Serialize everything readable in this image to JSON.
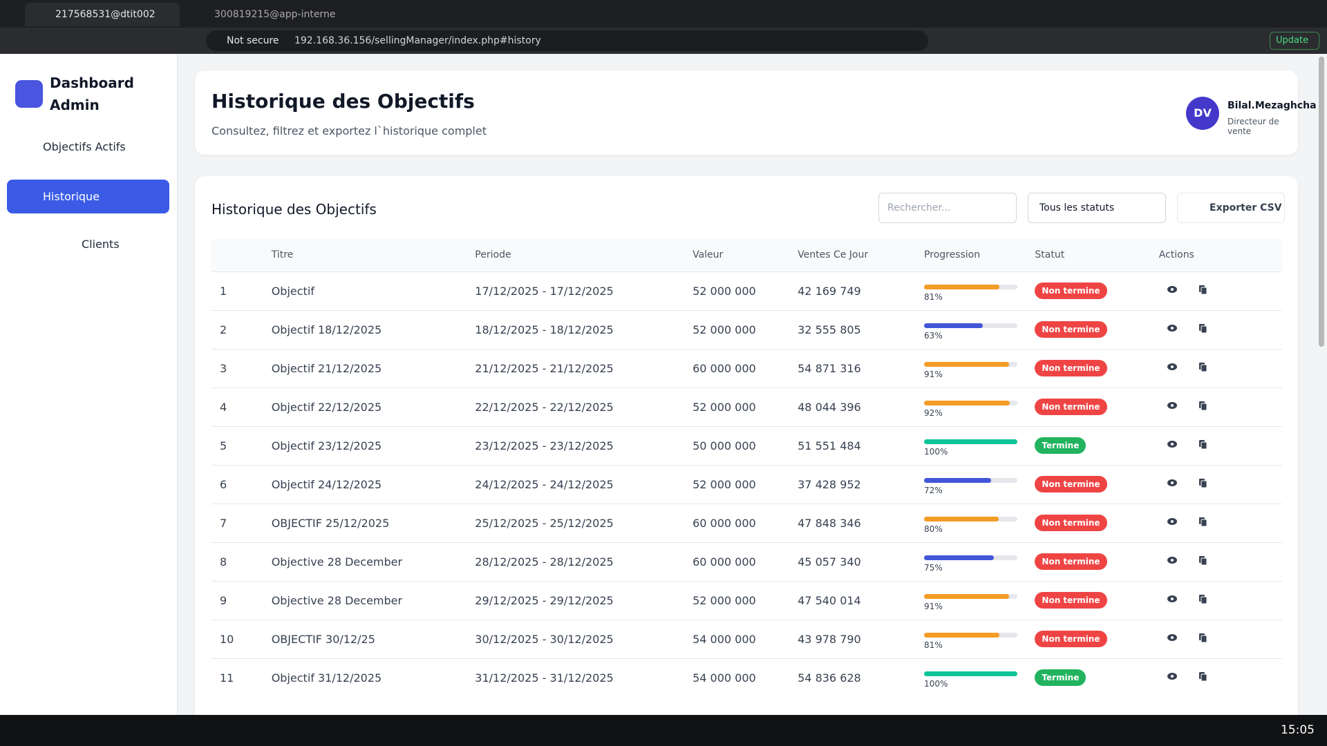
{
  "browser": {
    "tabs": [
      "217568531@dtit002",
      "300819215@app-interne"
    ],
    "security": "Not secure",
    "url": "192.168.36.156/sellingManager/index.php#history",
    "update": "Update"
  },
  "sidebar": {
    "brand": "Dashboard Admin",
    "nav": [
      "Objectifs Actifs",
      "Historique",
      "Clients"
    ]
  },
  "header": {
    "title": "Historique des Objectifs",
    "subtitle": "Consultez, filtrez et exportez l`historique complet",
    "avatar": "DV",
    "user": "Bilal.Mezaghcha",
    "role": "Directeur de vente"
  },
  "table": {
    "title": "Historique des Objectifs",
    "search_placeholder": "Rechercher...",
    "status_filter": "Tous les statuts",
    "export": "Exporter CSV",
    "columns": [
      "Titre",
      "Periode",
      "Valeur",
      "Ventes Ce Jour",
      "Progression",
      "Statut",
      "Actions"
    ],
    "rows": [
      {
        "n": 1,
        "title": "Objectif",
        "period": "17/12/2025 - 17/12/2025",
        "value": "52 000 000",
        "sales": "42 169 749",
        "progress": 81,
        "progress_label": "81%",
        "bar_color": "#f39c26",
        "status": "Non termine",
        "status_color": "#ef4444"
      },
      {
        "n": 2,
        "title": "Objectif 18/12/2025",
        "period": "18/12/2025 - 18/12/2025",
        "value": "52 000 000",
        "sales": "32 555 805",
        "progress": 63,
        "progress_label": "63%",
        "bar_color": "#4356d8",
        "status": "Non termine",
        "status_color": "#ef4444"
      },
      {
        "n": 3,
        "title": "Objectif 21/12/2025",
        "period": "21/12/2025 - 21/12/2025",
        "value": "60 000 000",
        "sales": "54 871 316",
        "progress": 91,
        "progress_label": "91%",
        "bar_color": "#f39c26",
        "status": "Non termine",
        "status_color": "#ef4444"
      },
      {
        "n": 4,
        "title": "Objectif 22/12/2025",
        "period": "22/12/2025 - 22/12/2025",
        "value": "52 000 000",
        "sales": "48 044 396",
        "progress": 92,
        "progress_label": "92%",
        "bar_color": "#f39c26",
        "status": "Non termine",
        "status_color": "#ef4444"
      },
      {
        "n": 5,
        "title": "Objectif 23/12/2025",
        "period": "23/12/2025 - 23/12/2025",
        "value": "50 000 000",
        "sales": "51 551 484",
        "progress": 100,
        "progress_label": "100%",
        "bar_color": "#10c49a",
        "status": "Termine",
        "status_color": "#22b35e"
      },
      {
        "n": 6,
        "title": "Objectif 24/12/2025",
        "period": "24/12/2025 - 24/12/2025",
        "value": "52 000 000",
        "sales": "37 428 952",
        "progress": 72,
        "progress_label": "72%",
        "bar_color": "#4356d8",
        "status": "Non termine",
        "status_color": "#ef4444"
      },
      {
        "n": 7,
        "title": "OBJECTIF 25/12/2025",
        "period": "25/12/2025 - 25/12/2025",
        "value": "60 000 000",
        "sales": "47 848 346",
        "progress": 80,
        "progress_label": "80%",
        "bar_color": "#f39c26",
        "status": "Non termine",
        "status_color": "#ef4444"
      },
      {
        "n": 8,
        "title": "Objective 28 December",
        "period": "28/12/2025 - 28/12/2025",
        "value": "60 000 000",
        "sales": "45 057 340",
        "progress": 75,
        "progress_label": "75%",
        "bar_color": "#4356d8",
        "status": "Non termine",
        "status_color": "#ef4444"
      },
      {
        "n": 9,
        "title": "Objective 28 December",
        "period": "29/12/2025 - 29/12/2025",
        "value": "52 000 000",
        "sales": "47 540 014",
        "progress": 91,
        "progress_label": "91%",
        "bar_color": "#f39c26",
        "status": "Non termine",
        "status_color": "#ef4444"
      },
      {
        "n": 10,
        "title": "OBJECTIF 30/12/25",
        "period": "30/12/2025 - 30/12/2025",
        "value": "54 000 000",
        "sales": "43 978 790",
        "progress": 81,
        "progress_label": "81%",
        "bar_color": "#f39c26",
        "status": "Non termine",
        "status_color": "#ef4444"
      },
      {
        "n": 11,
        "title": "Objectif 31/12/2025",
        "period": "31/12/2025 - 31/12/2025",
        "value": "54 000 000",
        "sales": "54 836 628",
        "progress": 100,
        "progress_label": "100%",
        "bar_color": "#10c49a",
        "status": "Termine",
        "status_color": "#22b35e"
      }
    ]
  },
  "taskbar": {
    "time": "15:05"
  }
}
